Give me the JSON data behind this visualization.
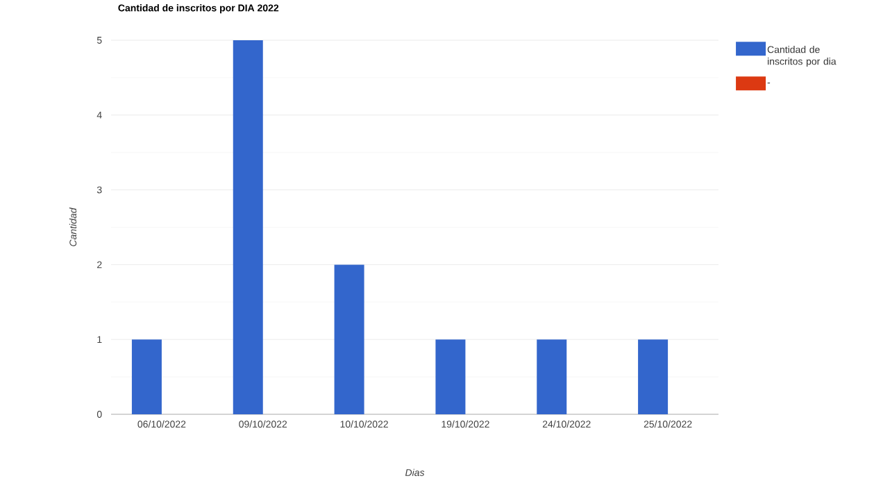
{
  "chart_data": {
    "type": "bar",
    "title": "Cantidad de inscritos por DIA 2022",
    "xlabel": "Dias",
    "ylabel": "Cantidad",
    "categories": [
      "06/10/2022",
      "09/10/2022",
      "10/10/2022",
      "19/10/2022",
      "24/10/2022",
      "25/10/2022"
    ],
    "series": [
      {
        "name": "Cantidad de inscritos por dia",
        "color": "#3366cc",
        "values": [
          1,
          5,
          2,
          1,
          1,
          1
        ]
      },
      {
        "name": "-",
        "color": "#dc3912",
        "values": [
          0,
          0,
          0,
          0,
          0,
          0
        ]
      }
    ],
    "ylim": [
      0,
      5
    ],
    "yticks": [
      0,
      {
        "value": 0.5,
        "label": null
      },
      1,
      {
        "value": 1.5,
        "label": null
      },
      2,
      {
        "value": 2.5,
        "label": null
      },
      3,
      {
        "value": 3.5,
        "label": null
      },
      4,
      {
        "value": 4.5,
        "label": null
      },
      5
    ],
    "grid": "y",
    "legend": "right"
  }
}
